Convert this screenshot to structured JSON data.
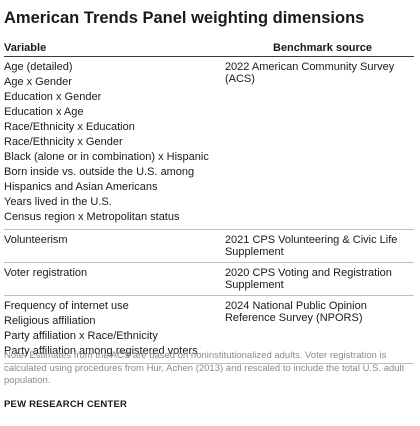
{
  "title": "American Trends Panel weighting dimensions",
  "headers": {
    "variable": "Variable",
    "benchmark": "Benchmark source"
  },
  "groups": [
    {
      "variables": [
        "Age (detailed)",
        "Age x Gender",
        "Education x Gender",
        "Education x Age",
        "Race/Ethnicity x Education",
        "Race/Ethnicity x Gender",
        "Black (alone or in combination) x Hispanic",
        "Born inside vs. outside the U.S. among Hispanics and Asian Americans",
        "Years lived in the U.S.",
        "Census region x Metropolitan status"
      ],
      "benchmark": "2022 American Community Survey (ACS)"
    },
    {
      "variables": [
        "Volunteerism"
      ],
      "benchmark": "2021 CPS Volunteering & Civic Life Supplement"
    },
    {
      "variables": [
        "Voter registration"
      ],
      "benchmark": "2020 CPS Voting and Registration Supplement"
    },
    {
      "variables": [
        "Frequency of internet use",
        "Religious affiliation",
        "Party affiliation x Race/Ethnicity",
        "Party affiliation among registered voters"
      ],
      "benchmark": "2024 National Public Opinion Reference Survey (NPORS)"
    }
  ],
  "note": "Note: Estimates from the ACS are based on noninstitutionalized adults. Voter registration is calculated using procedures from Hur, Achen (2013) and rescaled to include the total U.S. adult population.",
  "source": "PEW RESEARCH CENTER"
}
